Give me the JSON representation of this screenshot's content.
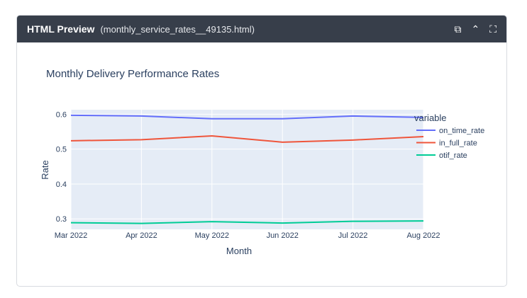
{
  "header": {
    "title": "HTML Preview",
    "filename": "(monthly_service_rates__49135.html)",
    "icons": [
      "copy-icon",
      "chevron-up-icon",
      "fullscreen-icon"
    ]
  },
  "chart_data": {
    "type": "line",
    "title": "Monthly Delivery Performance Rates",
    "xlabel": "Month",
    "ylabel": "Rate",
    "categories": [
      "Mar 2022",
      "Apr 2022",
      "May 2022",
      "Jun 2022",
      "Jul 2022",
      "Aug 2022"
    ],
    "yticks": [
      "0.3",
      "0.4",
      "0.5",
      "0.6"
    ],
    "ylim": [
      0.27,
      0.613
    ],
    "grid": true,
    "legend": {
      "title": "variable",
      "placement": "right"
    },
    "series": [
      {
        "name": "on_time_rate",
        "color": "#636efa",
        "values": [
          0.597,
          0.595,
          0.587,
          0.587,
          0.595,
          0.591
        ]
      },
      {
        "name": "in_full_rate",
        "color": "#ef553b",
        "values": [
          0.524,
          0.527,
          0.538,
          0.52,
          0.526,
          0.536
        ]
      },
      {
        "name": "otif_rate",
        "color": "#00cc96",
        "values": [
          0.289,
          0.287,
          0.292,
          0.288,
          0.293,
          0.294
        ]
      }
    ]
  }
}
